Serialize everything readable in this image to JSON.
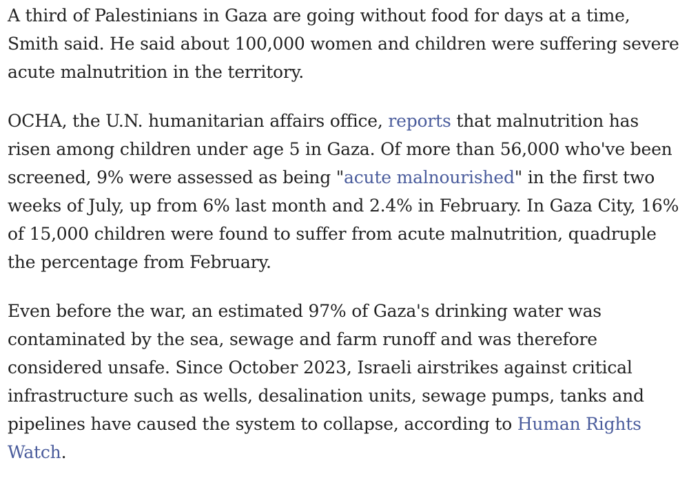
{
  "article": {
    "paragraphs": [
      {
        "lines": [
          "A third of Palestinians in Gaza are going without food for days at a time,",
          "Smith said. He said about 100,000 women and children were suffering severe",
          "acute malnutrition in the territory."
        ]
      },
      {
        "line1_before": "OCHA, the U.N. humanitarian affairs office, ",
        "link_reports": "reports",
        "line1_after": " that malnutrition has",
        "line2": "risen among children under age 5 in Gaza. Of more than 56,000 who've been",
        "line3_before": "screened, 9% were assessed as being \"",
        "link_acute": "acute malnourished",
        "line3_after": "\" in the first two",
        "line4": "weeks of July, up from 6% last month and 2.4% in February. In Gaza City, 16%",
        "line5": "of 15,000 children were found to suffer from acute malnutrition, quadruple",
        "line6": "the percentage from February."
      },
      {
        "lines": [
          "Even before the war, an estimated 97% of Gaza's drinking water was",
          "contaminated by the sea, sewage and farm runoff and was therefore",
          "considered unsafe. Since October 2023, Israeli airstrikes against critical",
          "infrastructure such as wells, desalination units, sewage pumps, tanks and"
        ],
        "line5_before": "pipelines have caused the system to collapse, according to ",
        "link_hrw_part1": "Human Rights",
        "link_hrw_part2": "Watch",
        "line6_after": "."
      }
    ],
    "link_color": "#4a5c9c",
    "text_color": "#222222"
  }
}
